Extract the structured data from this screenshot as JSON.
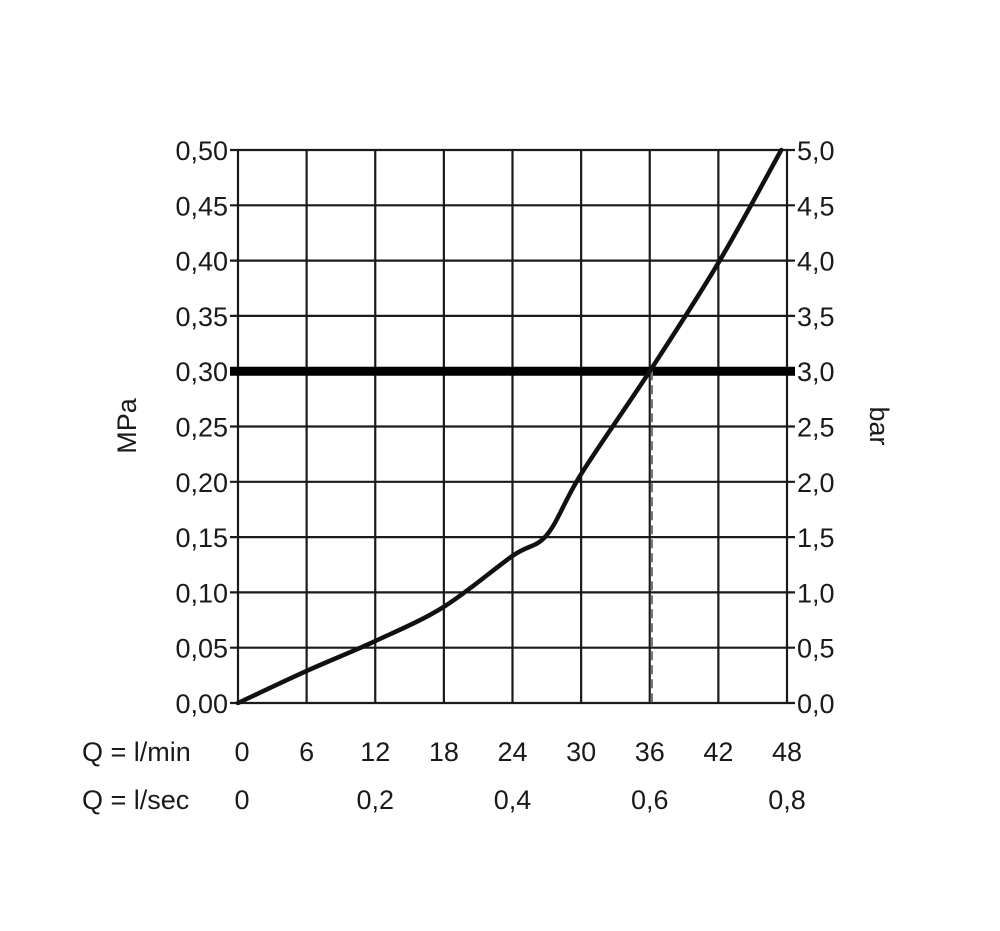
{
  "chart_data": {
    "type": "line",
    "title": "",
    "ylabel": "MPa",
    "ylabel_right": "bar",
    "xlabel_rows": [
      "Q = l/min",
      "Q = l/sec"
    ],
    "xlim": [
      0,
      48
    ],
    "ylim": [
      0,
      0.5
    ],
    "grid": true,
    "x_ticks": [
      "0",
      "6",
      "12",
      "18",
      "24",
      "30",
      "36",
      "42",
      "48"
    ],
    "x_ticks_values": [
      0,
      6,
      12,
      18,
      24,
      30,
      36,
      42,
      48
    ],
    "x2_ticks": [
      "0",
      "0,2",
      "0,4",
      "0,6",
      "0,8"
    ],
    "x2_ticks_values": [
      0,
      12,
      24,
      36,
      48
    ],
    "y_ticks": [
      "0,00",
      "0,05",
      "0,10",
      "0,15",
      "0,20",
      "0,25",
      "0,30",
      "0,35",
      "0,40",
      "0,45",
      "0,50"
    ],
    "y_ticks_values": [
      0,
      0.05,
      0.1,
      0.15,
      0.2,
      0.25,
      0.3,
      0.35,
      0.4,
      0.45,
      0.5
    ],
    "y2_ticks": [
      "0,0",
      "0,5",
      "1,0",
      "1,5",
      "2,0",
      "2,5",
      "3,0",
      "3,5",
      "4,0",
      "4,5",
      "5,0"
    ],
    "reference_line_y": 0.3,
    "reference_drop_x": 36,
    "series": [
      {
        "x": [
          0,
          6,
          12,
          18,
          24,
          27,
          30,
          36,
          42,
          47.5
        ],
        "y": [
          0,
          0.029,
          0.056,
          0.087,
          0.133,
          0.152,
          0.207,
          0.3,
          0.398,
          0.5
        ]
      }
    ],
    "colors": {
      "line": "#111111",
      "grid": "#1a1a1a",
      "dash": "#777777"
    }
  }
}
